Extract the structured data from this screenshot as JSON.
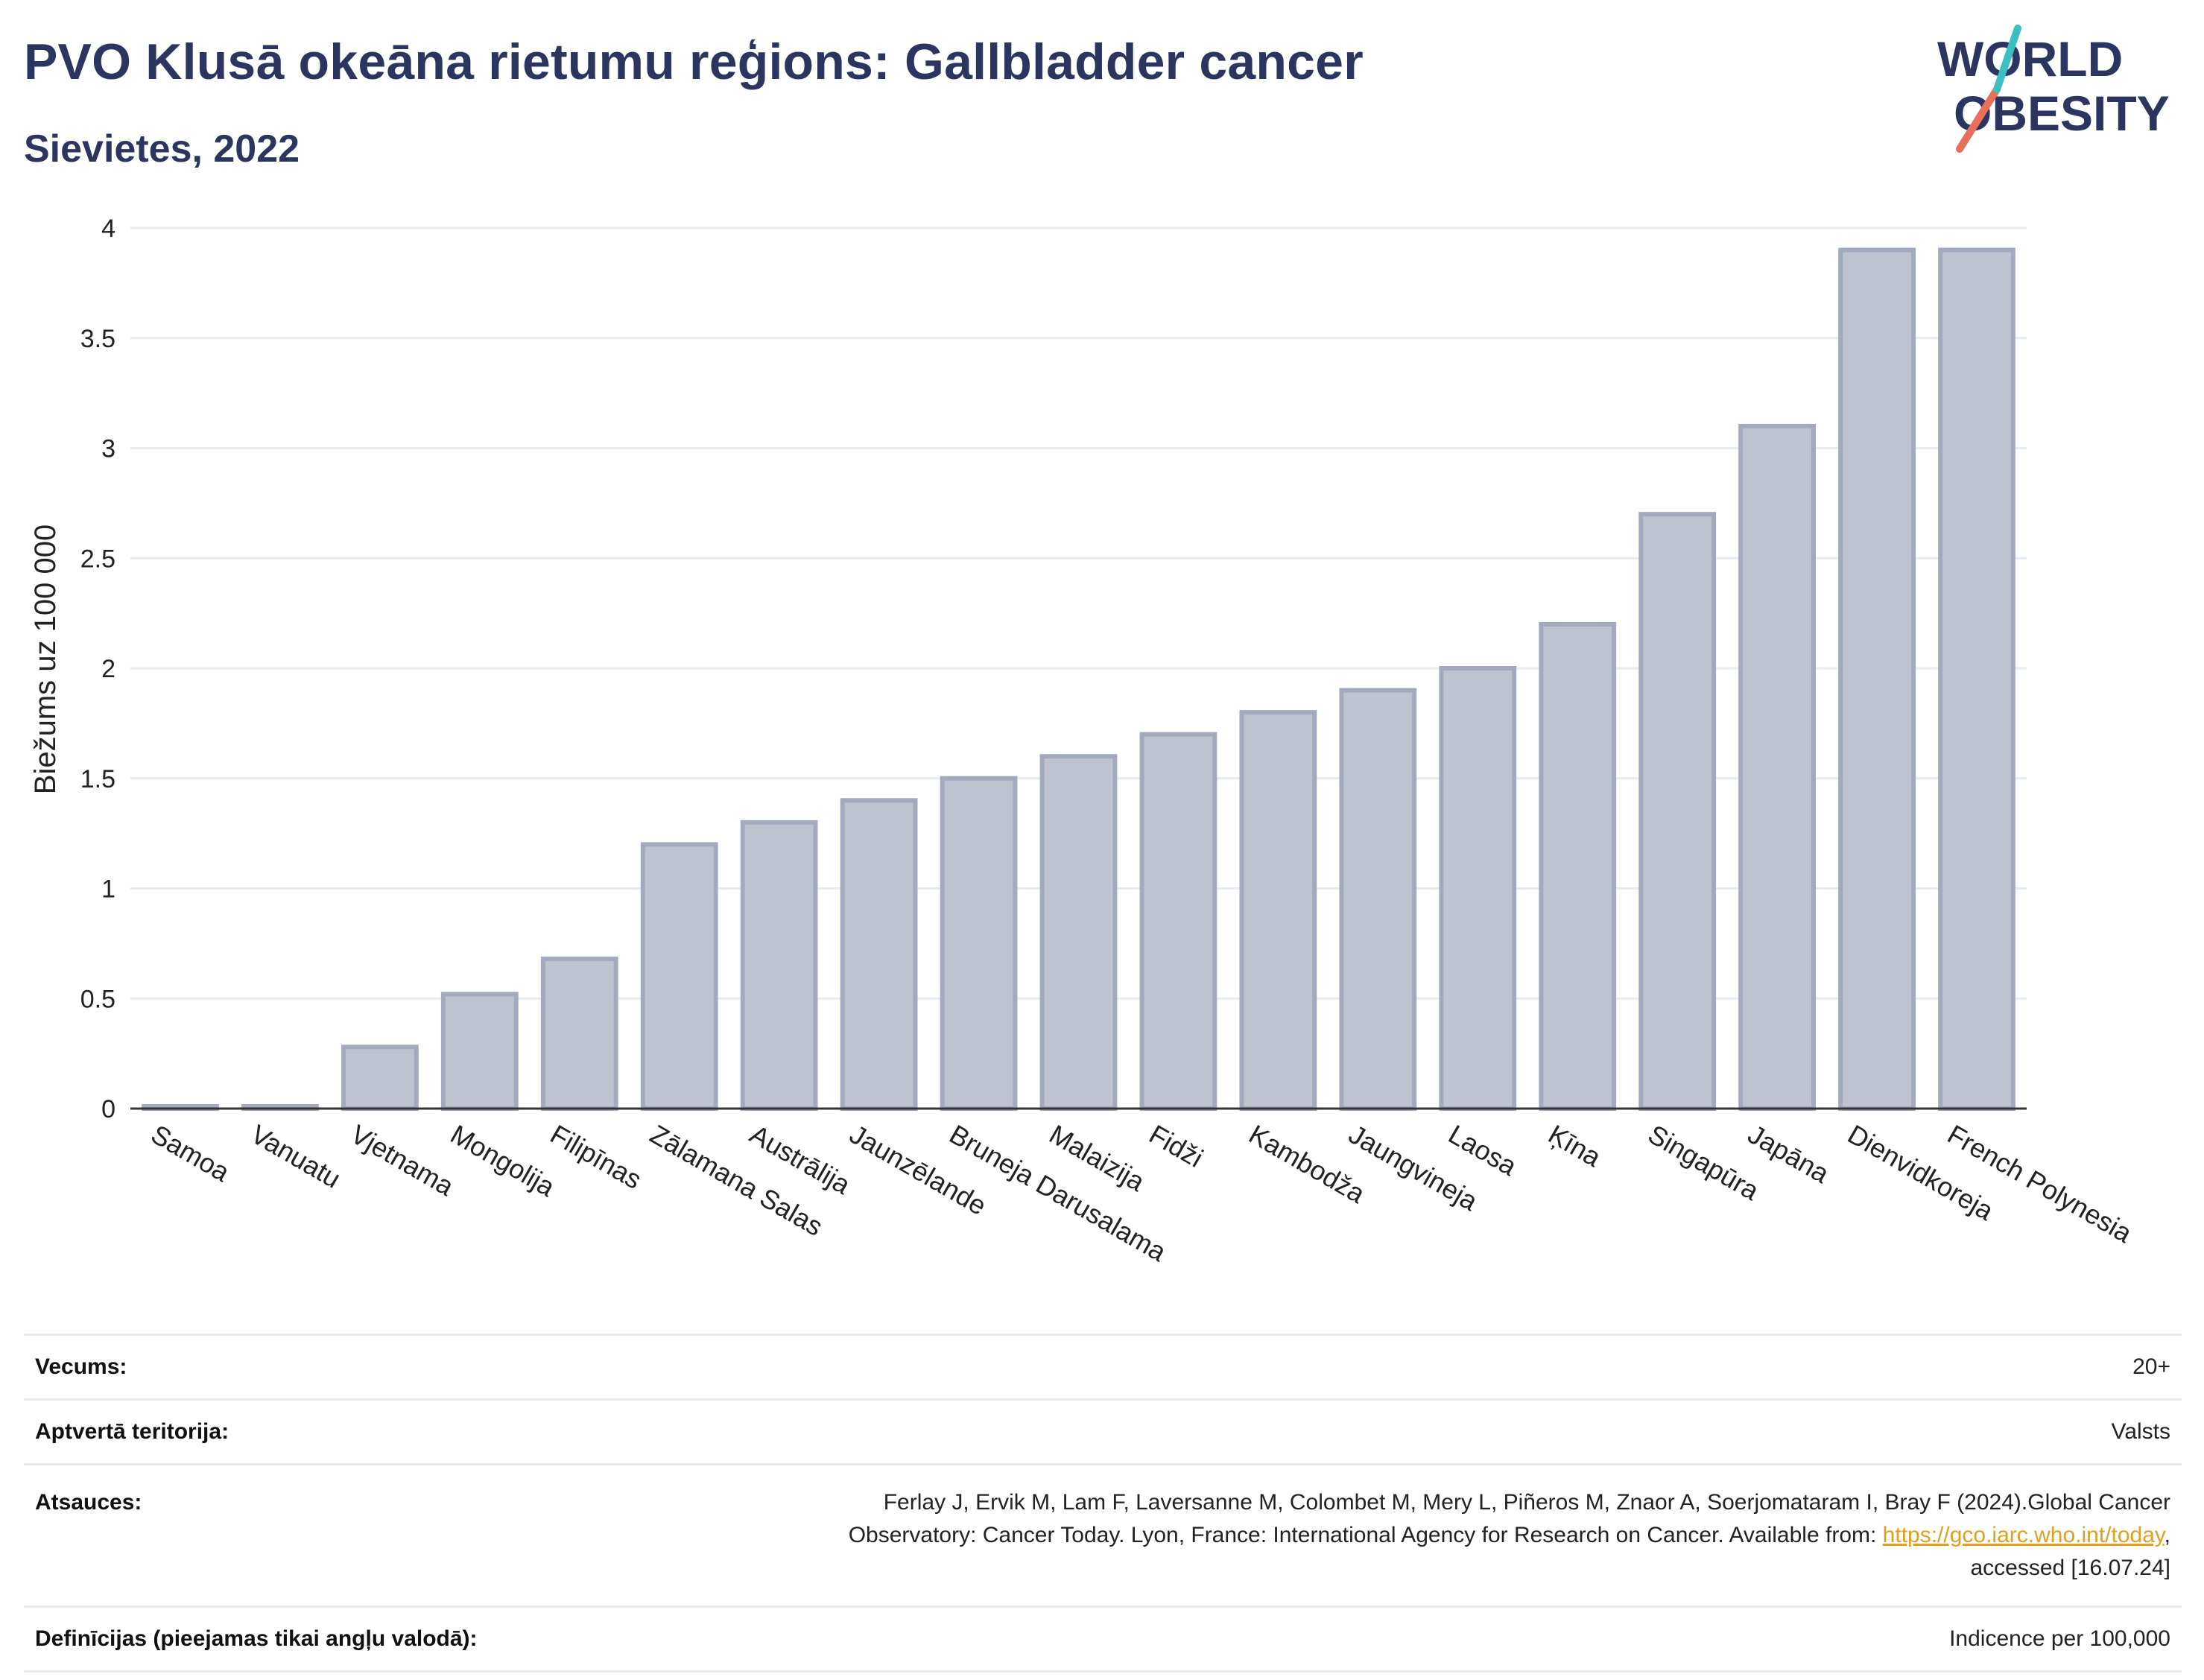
{
  "header": {
    "title": "PVO Klusā okeāna rietumu reģions: Gallbladder cancer",
    "subtitle": "Sievietes, 2022",
    "logo_line1": "WORLD",
    "logo_line2": "OBESITY"
  },
  "chart_data": {
    "type": "bar",
    "title": "PVO Klusā okeāna rietumu reģions: Gallbladder cancer",
    "subtitle": "Sievietes, 2022",
    "xlabel": "",
    "ylabel": "Biežums uz 100 000",
    "ylim": [
      0,
      4
    ],
    "yticks": [
      "0",
      "0.5",
      "1",
      "1.5",
      "2",
      "2.5",
      "3",
      "3.5",
      "4"
    ],
    "grid": true,
    "categories": [
      "Samoa",
      "Vanuatu",
      "Vjetnama",
      "Mongolija",
      "Filipīnas",
      "Zālamana Salas",
      "Austrālija",
      "Jaunzēlande",
      "Bruneja Darusalama",
      "Malaizija",
      "Fidži",
      "Kambodža",
      "Jaungvineja",
      "Laosa",
      "Ķīna",
      "Singapūra",
      "Japāna",
      "Dienvidkoreja",
      "French Polynesia"
    ],
    "values": [
      0.01,
      0.01,
      0.28,
      0.52,
      0.68,
      1.2,
      1.3,
      1.4,
      1.5,
      1.6,
      1.7,
      1.8,
      1.9,
      2.0,
      2.2,
      2.7,
      3.1,
      3.9,
      3.9
    ],
    "colors": {
      "bar_fill": "#bfc3d0",
      "bar_stroke": "#a3a9bf",
      "axis": "#333333",
      "grid": "#e6ecf2"
    }
  },
  "info": {
    "age_label": "Vecums:",
    "age_value": "20+",
    "coverage_label": "Aptvertā teritorija:",
    "coverage_value": "Valsts",
    "refs_label": "Atsauces:",
    "refs_line1": "Ferlay J, Ervik M, Lam F, Laversanne M, Colombet M, Mery L, Piñeros M, Znaor A, Soerjomataram I, Bray F (2024).Global Cancer",
    "refs_line2": "Observatory: Cancer Today. Lyon, France: International Agency for Research on Cancer. Available from: ",
    "refs_link": "https://gco.iarc.who.int/today",
    "refs_line2_end": ",",
    "refs_line3": "accessed [16.07.24]",
    "def_label": "Definīcijas (pieejamas tikai angļu valodā):",
    "def_value": "Indicence per 100,000"
  }
}
